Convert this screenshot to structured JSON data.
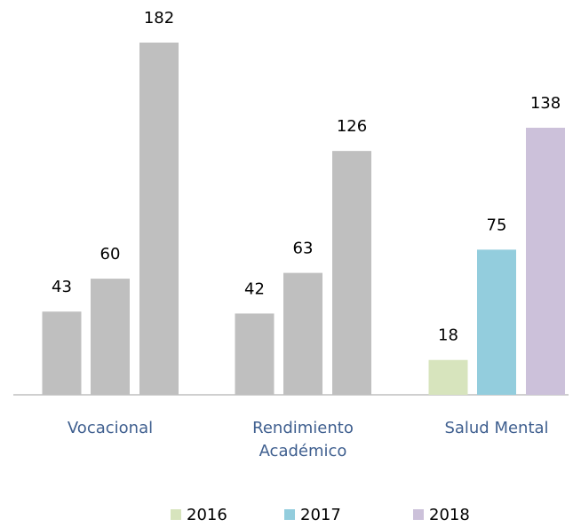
{
  "chart_data": {
    "type": "bar",
    "categories": [
      "Vocacional",
      "Rendimiento Académico",
      "Salud Mental"
    ],
    "series": [
      {
        "name": "2016",
        "color": "#d7e4bd",
        "colors": [
          "#bfbfbf",
          "#bfbfbf",
          "#d7e4bd"
        ],
        "values": [
          43,
          42,
          18
        ]
      },
      {
        "name": "2017",
        "color": "#93cddd",
        "colors": [
          "#bfbfbf",
          "#bfbfbf",
          "#93cddd"
        ],
        "values": [
          60,
          63,
          75
        ]
      },
      {
        "name": "2018",
        "color": "#ccc1da",
        "colors": [
          "#bfbfbf",
          "#bfbfbf",
          "#ccc1da"
        ],
        "values": [
          182,
          126,
          138
        ]
      }
    ],
    "legend": "bottom"
  }
}
